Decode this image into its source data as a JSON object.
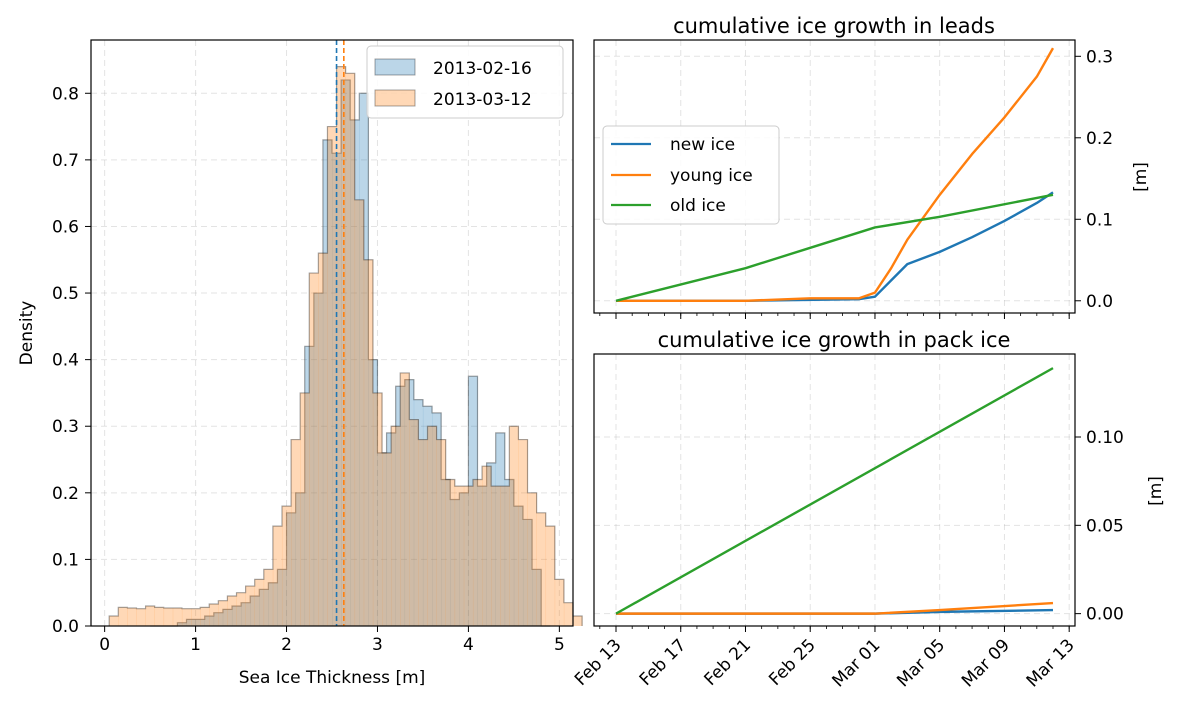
{
  "colors": {
    "blue": "#1f77b4",
    "orange": "#ff7f0e",
    "green": "#2ca02c",
    "hist_blue_fill": "#1f77b4",
    "hist_orange_fill": "#ff7f0e"
  },
  "chart_data": [
    {
      "type": "histogram",
      "title": "",
      "xlabel": "Sea Ice Thickness [m]",
      "ylabel": "Density",
      "xlim": [
        -0.15,
        5.15
      ],
      "ylim": [
        0,
        0.88
      ],
      "xticks": [
        0,
        1,
        2,
        3,
        4,
        5
      ],
      "yticks": [
        0.0,
        0.1,
        0.2,
        0.3,
        0.4,
        0.5,
        0.6,
        0.7,
        0.8
      ],
      "grid": true,
      "legend_position": "upper right",
      "bin_width": 0.1,
      "series": [
        {
          "name": "2013-02-16",
          "color": "blue",
          "mean": 2.55,
          "bins_start": 0.5,
          "values": [
            0.0,
            0.0,
            0.0,
            0.005,
            0.01,
            0.01,
            0.015,
            0.02,
            0.025,
            0.03,
            0.035,
            0.045,
            0.055,
            0.065,
            0.085,
            0.17,
            0.2,
            0.42,
            0.5,
            0.73,
            0.71,
            0.82,
            0.76,
            0.8,
            0.4,
            0.26,
            0.29,
            0.36,
            0.37,
            0.34,
            0.33,
            0.32,
            0.22,
            0.19,
            0.2,
            0.375,
            0.21,
            0.245,
            0.29,
            0.22,
            0.18,
            0.16,
            0.085,
            0.0
          ]
        },
        {
          "name": "2013-03-12",
          "color": "orange",
          "mean": 2.63,
          "bins_start": 0.05,
          "values": [
            0.015,
            0.028,
            0.027,
            0.026,
            0.03,
            0.028,
            0.027,
            0.027,
            0.026,
            0.026,
            0.028,
            0.033,
            0.038,
            0.045,
            0.05,
            0.06,
            0.07,
            0.085,
            0.15,
            0.18,
            0.28,
            0.35,
            0.53,
            0.56,
            0.75,
            0.84,
            0.83,
            0.64,
            0.55,
            0.35,
            0.26,
            0.3,
            0.38,
            0.31,
            0.28,
            0.3,
            0.28,
            0.22,
            0.21,
            0.21,
            0.22,
            0.24,
            0.21,
            0.21,
            0.3,
            0.28,
            0.2,
            0.17,
            0.15,
            0.07,
            0.035,
            0.015
          ]
        }
      ]
    },
    {
      "type": "line",
      "title": "cumulative ice growth in leads",
      "ylabel": "[m]",
      "x_range": [
        "2013-02-12",
        "2013-03-14"
      ],
      "ylim": [
        -0.015,
        0.32
      ],
      "yticks": [
        0.0,
        0.1,
        0.2,
        0.3
      ],
      "ytick_labels": [
        "0.0",
        "0.1",
        "0.2",
        "0.3"
      ],
      "grid": true,
      "legend_position": "center left",
      "series": [
        {
          "name": "new ice",
          "color": "blue",
          "x": [
            "2013-02-13",
            "2013-02-21",
            "2013-02-28",
            "2013-03-01",
            "2013-03-02",
            "2013-03-03",
            "2013-03-05",
            "2013-03-07",
            "2013-03-09",
            "2013-03-11",
            "2013-03-12"
          ],
          "y": [
            0.0,
            0.0,
            0.002,
            0.005,
            0.025,
            0.045,
            0.06,
            0.078,
            0.098,
            0.12,
            0.133
          ]
        },
        {
          "name": "young ice",
          "color": "orange",
          "x": [
            "2013-02-13",
            "2013-02-21",
            "2013-02-25",
            "2013-02-28",
            "2013-03-01",
            "2013-03-02",
            "2013-03-03",
            "2013-03-05",
            "2013-03-07",
            "2013-03-09",
            "2013-03-11",
            "2013-03-12"
          ],
          "y": [
            0.0,
            0.0,
            0.003,
            0.003,
            0.01,
            0.04,
            0.075,
            0.13,
            0.18,
            0.225,
            0.275,
            0.31
          ]
        },
        {
          "name": "old ice",
          "color": "green",
          "x": [
            "2013-02-13",
            "2013-02-21",
            "2013-02-25",
            "2013-03-01",
            "2013-03-05",
            "2013-03-12"
          ],
          "y": [
            0.0,
            0.04,
            0.065,
            0.09,
            0.103,
            0.13
          ]
        }
      ]
    },
    {
      "type": "line",
      "title": "cumulative ice growth in pack ice",
      "ylabel": "[m]",
      "x_range": [
        "2013-02-12",
        "2013-03-14"
      ],
      "xlabel_dates": [
        "Feb 13",
        "Feb 17",
        "Feb 21",
        "Feb 25",
        "Mar 01",
        "Mar 05",
        "Mar 09",
        "Mar 13"
      ],
      "ylim": [
        -0.007,
        0.147
      ],
      "yticks": [
        0.0,
        0.05,
        0.1
      ],
      "ytick_labels": [
        "0.00",
        "0.05",
        "0.10"
      ],
      "grid": true,
      "series": [
        {
          "name": "new ice",
          "color": "blue",
          "x": [
            "2013-02-13",
            "2013-03-01",
            "2013-03-05",
            "2013-03-12"
          ],
          "y": [
            0.0,
            0.0,
            0.001,
            0.002
          ]
        },
        {
          "name": "young ice",
          "color": "orange",
          "x": [
            "2013-02-13",
            "2013-03-01",
            "2013-03-05",
            "2013-03-12"
          ],
          "y": [
            0.0,
            0.0,
            0.002,
            0.006
          ]
        },
        {
          "name": "old ice",
          "color": "green",
          "x": [
            "2013-02-13",
            "2013-03-12"
          ],
          "y": [
            0.0,
            0.139
          ]
        }
      ]
    }
  ]
}
